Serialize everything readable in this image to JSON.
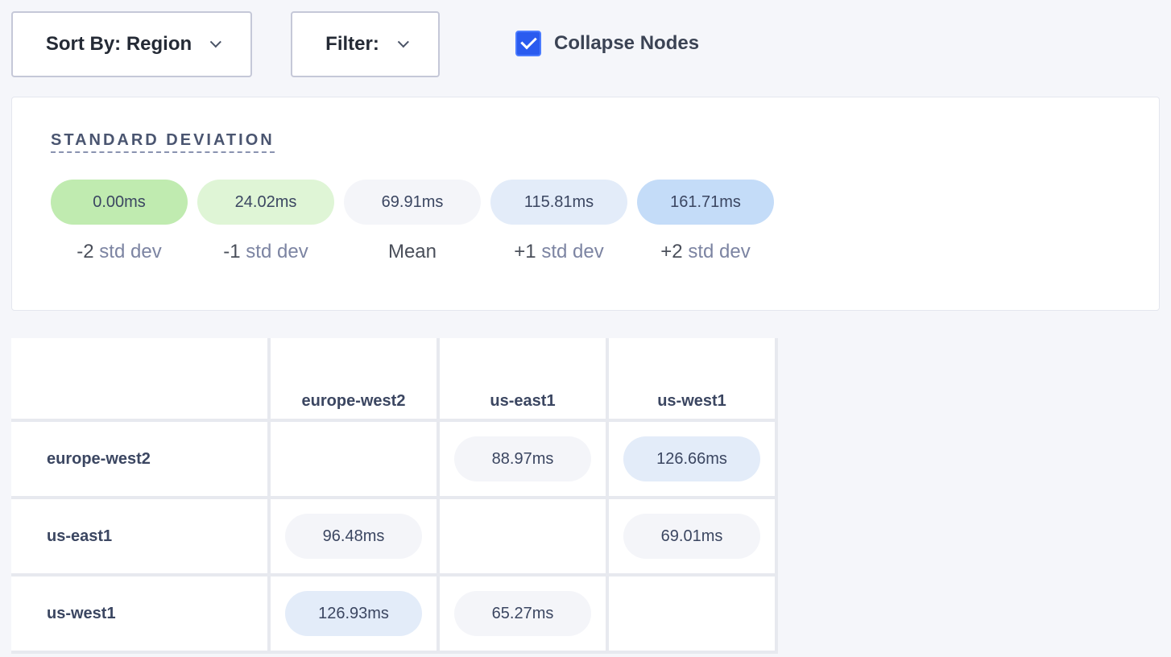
{
  "toolbar": {
    "sort_label": "Sort By: Region",
    "filter_label": "Filter:",
    "collapse_label": "Collapse Nodes",
    "collapse_checked": true
  },
  "legend": {
    "title": "STANDARD DEVIATION",
    "items": [
      {
        "value": "0.00ms",
        "prefix": "-2",
        "suffix": " std dev",
        "color": "#c0ebb0"
      },
      {
        "value": "24.02ms",
        "prefix": "-1",
        "suffix": " std dev",
        "color": "#dff5d6"
      },
      {
        "value": "69.91ms",
        "prefix": "Mean",
        "suffix": "",
        "color": "#f4f5f9"
      },
      {
        "value": "115.81ms",
        "prefix": "+1",
        "suffix": " std dev",
        "color": "#e3ecf9"
      },
      {
        "value": "161.71ms",
        "prefix": "+2",
        "suffix": " std dev",
        "color": "#c4dcf8"
      }
    ]
  },
  "matrix": {
    "columns": [
      "europe-west2",
      "us-east1",
      "us-west1"
    ],
    "rows": [
      {
        "label": "europe-west2",
        "cells": [
          null,
          {
            "value": "88.97ms",
            "color": "#f4f5f9"
          },
          {
            "value": "126.66ms",
            "color": "#e3ecf9"
          }
        ]
      },
      {
        "label": "us-east1",
        "cells": [
          {
            "value": "96.48ms",
            "color": "#f4f5f9"
          },
          null,
          {
            "value": "69.01ms",
            "color": "#f4f5f9"
          }
        ]
      },
      {
        "label": "us-west1",
        "cells": [
          {
            "value": "126.93ms",
            "color": "#e3ecf9"
          },
          {
            "value": "65.27ms",
            "color": "#f4f5f9"
          },
          null
        ]
      }
    ]
  }
}
